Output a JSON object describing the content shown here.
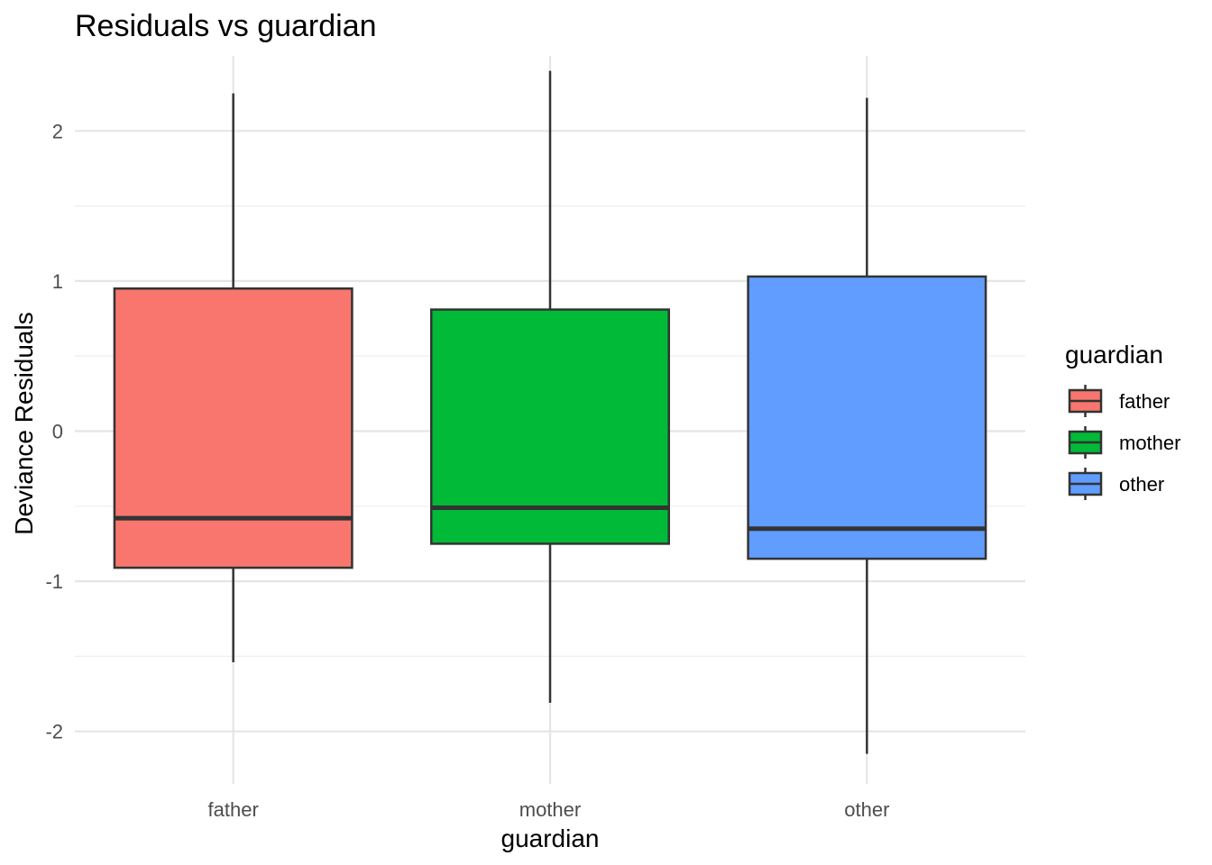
{
  "chart_data": {
    "type": "box",
    "title": "Residuals vs guardian",
    "xlabel": "guardian",
    "ylabel": "Deviance Residuals",
    "categories": [
      "father",
      "mother",
      "other"
    ],
    "ylim": [
      -2.35,
      2.5
    ],
    "yticks": [
      -2,
      -1,
      0,
      1,
      2
    ],
    "grid": true,
    "legend": {
      "title": "guardian",
      "placement": "right",
      "entries": [
        "father",
        "mother",
        "other"
      ]
    },
    "series": [
      {
        "category": "father",
        "whisker_low": -1.54,
        "q1": -0.91,
        "median": -0.58,
        "q3": 0.95,
        "whisker_high": 2.25,
        "color": "#F8766D"
      },
      {
        "category": "mother",
        "whisker_low": -1.81,
        "q1": -0.75,
        "median": -0.51,
        "q3": 0.81,
        "whisker_high": 2.4,
        "color": "#00BA38"
      },
      {
        "category": "other",
        "whisker_low": -2.15,
        "q1": -0.85,
        "median": -0.65,
        "q3": 1.03,
        "whisker_high": 2.22,
        "color": "#619CFF"
      }
    ]
  }
}
